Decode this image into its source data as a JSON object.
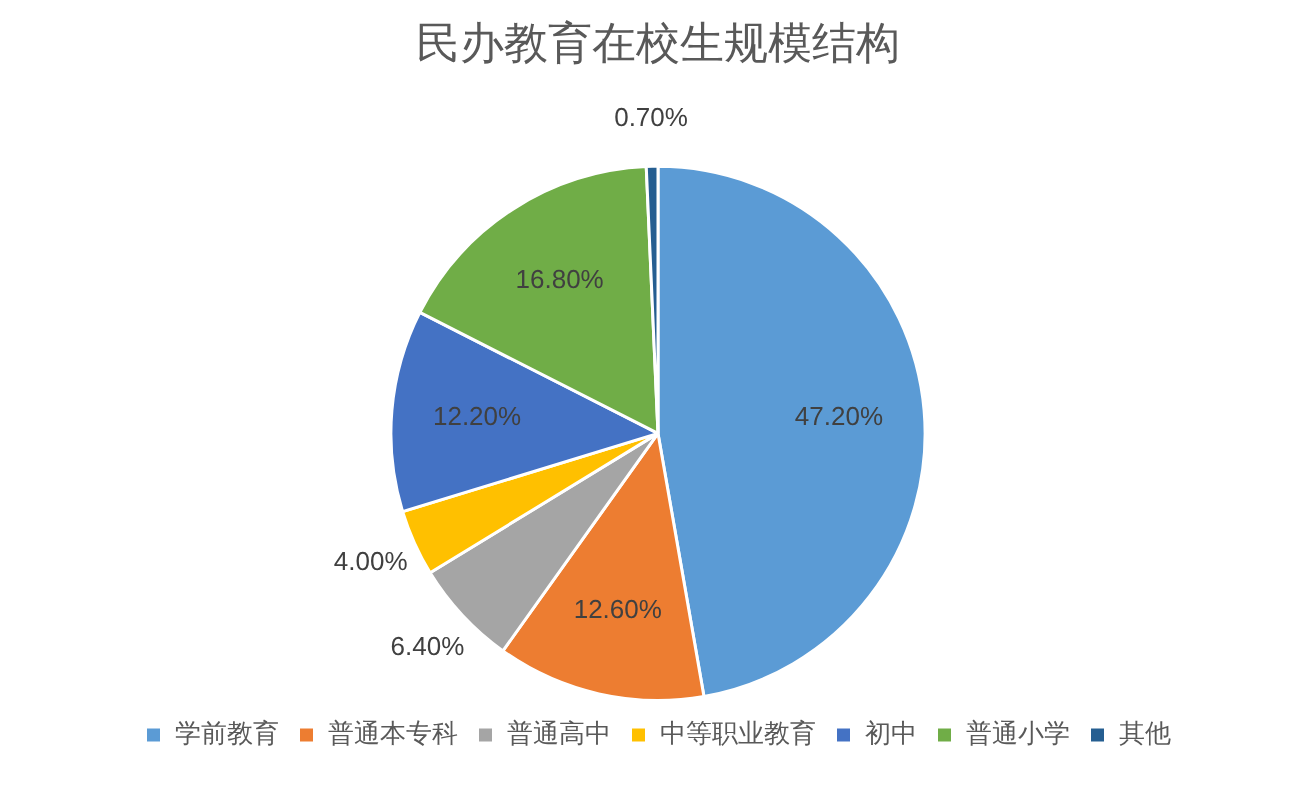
{
  "chart_data": {
    "type": "pie",
    "title": "民办教育在校生规模结构",
    "categories": [
      "学前教育",
      "普通本专科",
      "普通高中",
      "中等职业教育",
      "初中",
      "普通小学",
      "其他"
    ],
    "values": [
      47.2,
      12.6,
      6.4,
      4.0,
      12.2,
      16.8,
      0.7
    ],
    "colors": [
      "#5b9bd5",
      "#ed7d31",
      "#a5a5a5",
      "#ffc000",
      "#4472c4",
      "#70ad47",
      "#255e91"
    ],
    "value_labels": [
      "47.20%",
      "12.60%",
      "6.40%",
      "4.00%",
      "12.20%",
      "16.80%",
      "0.70%"
    ],
    "legend": "bottom"
  }
}
